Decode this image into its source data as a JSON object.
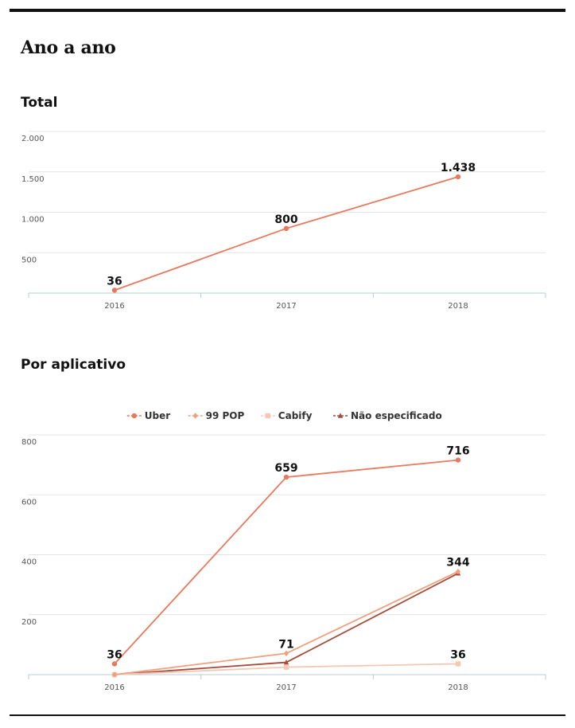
{
  "heading": "Ano a ano",
  "colors": {
    "uber": "#e9785d",
    "pop99": "#f0a07c",
    "cabify": "#f5c8b6",
    "nao": "#a54d3b",
    "grid": "#e4e4e4",
    "axis": "#b8ccd0"
  },
  "chart_data": [
    {
      "type": "line",
      "title": "Total",
      "categories": [
        "2016",
        "2017",
        "2018"
      ],
      "ylim": [
        0,
        2000
      ],
      "yticks": [
        500,
        1000,
        1500,
        2000
      ],
      "ytick_labels": [
        "500",
        "1.000",
        "1.500",
        "2.000"
      ],
      "grid": true,
      "legend": "none",
      "series": [
        {
          "key": "total",
          "color": "#e9785d",
          "marker": "circle",
          "values": [
            36,
            800,
            1438
          ],
          "labels": [
            "36",
            "800",
            "1.438"
          ]
        }
      ]
    },
    {
      "type": "line",
      "title": "Por aplicativo",
      "categories": [
        "2016",
        "2017",
        "2018"
      ],
      "ylim": [
        0,
        800
      ],
      "yticks": [
        200,
        400,
        600,
        800
      ],
      "ytick_labels": [
        "200",
        "400",
        "600",
        "800"
      ],
      "grid": true,
      "legend": "top-center",
      "series": [
        {
          "name": "Uber",
          "color": "#e9785d",
          "marker": "circle",
          "values": [
            36,
            659,
            716
          ],
          "labels": [
            "36",
            "659",
            "716"
          ]
        },
        {
          "name": "99 POP",
          "color": "#f0a07c",
          "marker": "diamond",
          "values": [
            0,
            71,
            344
          ],
          "labels": [
            "",
            "71",
            "344"
          ]
        },
        {
          "name": "Cabify",
          "color": "#f5c8b6",
          "marker": "square",
          "values": [
            0,
            25,
            36
          ],
          "labels": [
            "",
            "",
            "36"
          ]
        },
        {
          "name": "Não especificado",
          "color": "#a54d3b",
          "marker": "triangle",
          "values": [
            0,
            41,
            338
          ],
          "labels": [
            "",
            "",
            ""
          ]
        }
      ]
    }
  ]
}
